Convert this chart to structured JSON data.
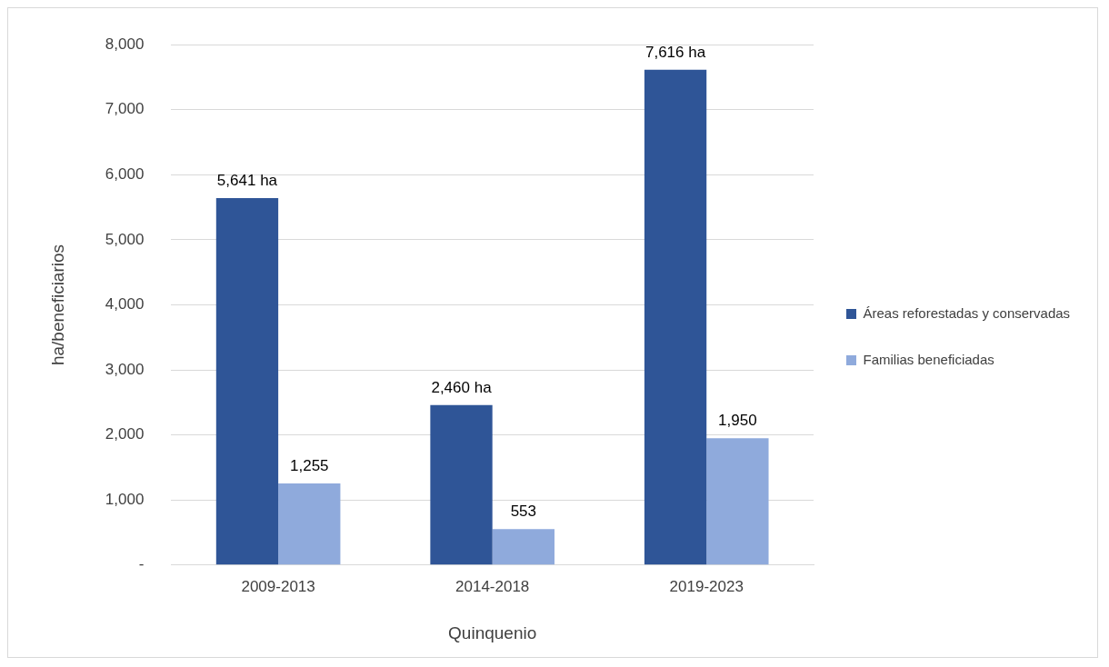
{
  "chart_data": {
    "type": "bar",
    "xlabel": "Quinquenio",
    "ylabel": "ha/beneficiarios",
    "categories": [
      "2009-2013",
      "2014-2018",
      "2019-2023"
    ],
    "series": [
      {
        "name": "Áreas reforestadas y conservadas",
        "color": "#2f5597",
        "values": [
          5641,
          2460,
          7616
        ],
        "value_labels": [
          "5,641 ha",
          "2,460 ha",
          "7,616 ha"
        ]
      },
      {
        "name": "Familias beneficiadas",
        "color": "#8faadc",
        "values": [
          1255,
          553,
          1950
        ],
        "value_labels": [
          "1,255",
          "553",
          "1,950"
        ]
      }
    ],
    "ylim": [
      0,
      8000
    ],
    "yticks": [
      {
        "value": 0,
        "label": "-"
      },
      {
        "value": 1000,
        "label": "1,000"
      },
      {
        "value": 2000,
        "label": "2,000"
      },
      {
        "value": 3000,
        "label": "3,000"
      },
      {
        "value": 4000,
        "label": "4,000"
      },
      {
        "value": 5000,
        "label": "5,000"
      },
      {
        "value": 6000,
        "label": "6,000"
      },
      {
        "value": 7000,
        "label": "7,000"
      },
      {
        "value": 8000,
        "label": "8,000"
      }
    ],
    "grid": "y",
    "legend": "right"
  }
}
